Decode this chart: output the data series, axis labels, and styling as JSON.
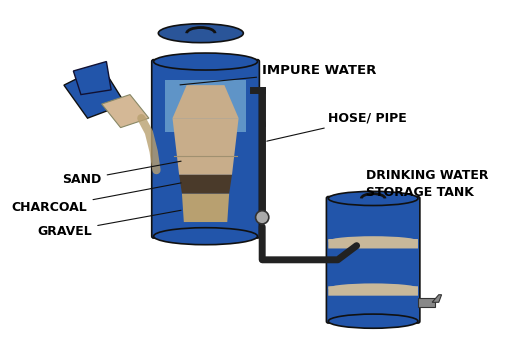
{
  "bg_color": "#ffffff",
  "blue_barrel": "#2255aa",
  "blue_dark": "#1a3d7c",
  "blue_lid": "#2a5599",
  "sand_color": "#c8ad8a",
  "charcoal_color": "#4a3a2a",
  "gravel_color": "#b8a070",
  "pipe_color": "#222222",
  "hand_blue": "#2255aa",
  "hand_skin": "#d4b896",
  "water_pour": "#b8a070",
  "connector_color": "#888888",
  "band_color": "#c8b89a",
  "title": "IMPURE WATER",
  "label_hose": "HOSE/ PIPE",
  "label_sand": "SAND",
  "label_charcoal": "CHARCOAL",
  "label_gravel": "GRAVEL",
  "label_storage": "DRINKING WATER\nSTORAGE TANK",
  "font_size": 9,
  "label_font": "DejaVu Sans"
}
